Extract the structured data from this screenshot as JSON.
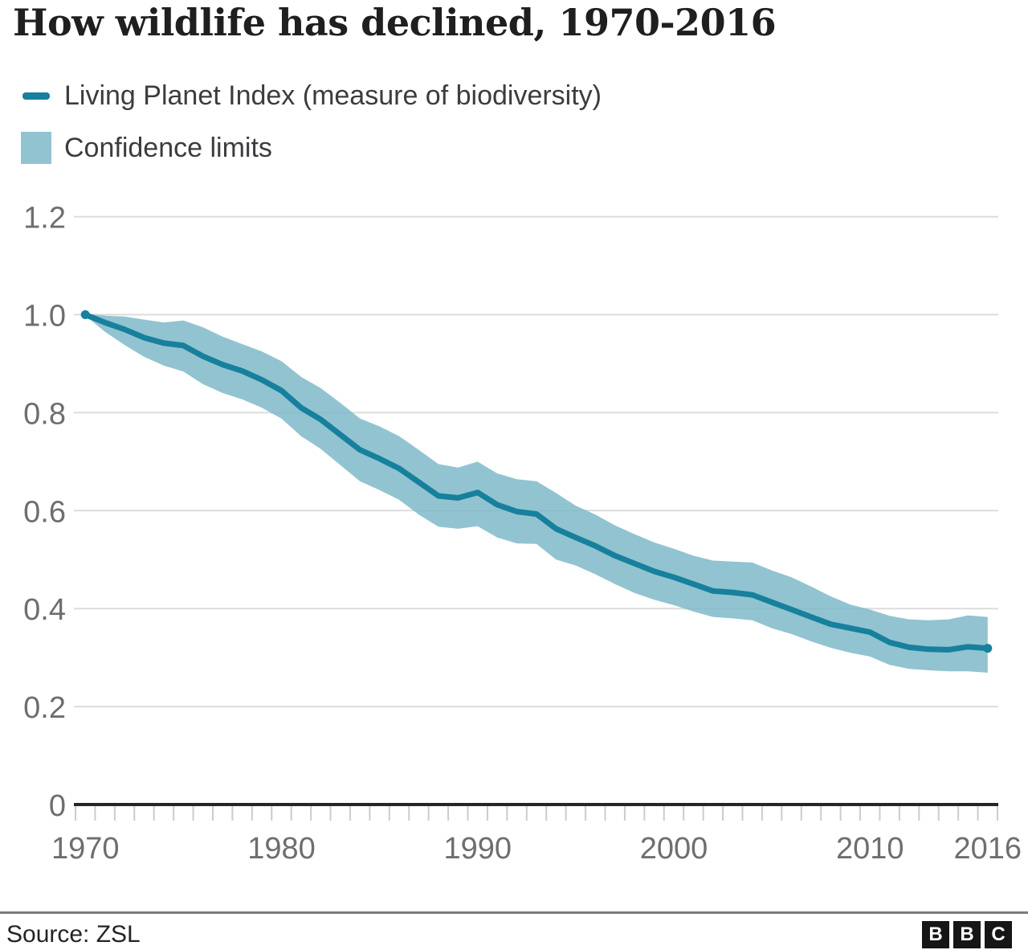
{
  "title": "How wildlife has declined, 1970-2016",
  "legend": {
    "items": [
      {
        "label": "Living Planet Index (measure of biodiversity)",
        "swatch": "line",
        "color": "#17809d"
      },
      {
        "label": "Confidence limits",
        "swatch": "box",
        "color": "#92c3d1"
      }
    ]
  },
  "footer": {
    "source": "Source: ZSL",
    "logo_letters": [
      "B",
      "B",
      "C"
    ]
  },
  "colors": {
    "line": "#17809d",
    "band": "#7fb9c9",
    "band_opacity": 0.85,
    "grid": "#dcdcdc",
    "axis": "#262626",
    "tick": "#cccccc",
    "axis_label": "#6e6e71"
  },
  "chart_data": {
    "type": "line",
    "title": "How wildlife has declined, 1970-2016",
    "xlabel": "",
    "ylabel": "",
    "grid": "horizontal",
    "legend_position": "top-left",
    "xlim": [
      1969.5,
      2016.5
    ],
    "ylim": [
      0,
      1.2
    ],
    "x": [
      1970,
      1971,
      1972,
      1973,
      1974,
      1975,
      1976,
      1977,
      1978,
      1979,
      1980,
      1981,
      1982,
      1983,
      1984,
      1985,
      1986,
      1987,
      1988,
      1989,
      1990,
      1991,
      1992,
      1993,
      1994,
      1995,
      1996,
      1997,
      1998,
      1999,
      2000,
      2001,
      2002,
      2003,
      2004,
      2005,
      2006,
      2007,
      2008,
      2009,
      2010,
      2011,
      2012,
      2013,
      2014,
      2015,
      2016
    ],
    "series": [
      {
        "name": "Living Planet Index (measure of biodiversity)",
        "values": [
          1.0,
          0.984,
          0.97,
          0.953,
          0.942,
          0.937,
          0.915,
          0.898,
          0.885,
          0.867,
          0.845,
          0.81,
          0.786,
          0.755,
          0.724,
          0.706,
          0.686,
          0.658,
          0.63,
          0.626,
          0.637,
          0.612,
          0.598,
          0.593,
          0.563,
          0.545,
          0.528,
          0.508,
          0.492,
          0.476,
          0.464,
          0.45,
          0.436,
          0.433,
          0.428,
          0.413,
          0.398,
          0.383,
          0.368,
          0.36,
          0.352,
          0.331,
          0.321,
          0.317,
          0.316,
          0.322,
          0.319
        ]
      },
      {
        "name": "Confidence limit upper",
        "values": [
          1.002,
          0.998,
          0.996,
          0.99,
          0.984,
          0.988,
          0.974,
          0.955,
          0.94,
          0.925,
          0.905,
          0.873,
          0.85,
          0.82,
          0.788,
          0.772,
          0.752,
          0.724,
          0.695,
          0.688,
          0.7,
          0.676,
          0.664,
          0.66,
          0.636,
          0.61,
          0.592,
          0.57,
          0.552,
          0.535,
          0.522,
          0.508,
          0.498,
          0.496,
          0.494,
          0.478,
          0.464,
          0.445,
          0.425,
          0.408,
          0.398,
          0.385,
          0.378,
          0.376,
          0.378,
          0.386,
          0.383
        ]
      },
      {
        "name": "Confidence limit lower",
        "values": [
          0.998,
          0.965,
          0.938,
          0.914,
          0.896,
          0.884,
          0.858,
          0.84,
          0.827,
          0.81,
          0.788,
          0.752,
          0.726,
          0.693,
          0.66,
          0.642,
          0.622,
          0.592,
          0.567,
          0.563,
          0.568,
          0.545,
          0.533,
          0.532,
          0.5,
          0.488,
          0.47,
          0.45,
          0.432,
          0.418,
          0.407,
          0.394,
          0.383,
          0.38,
          0.376,
          0.36,
          0.348,
          0.333,
          0.32,
          0.31,
          0.302,
          0.285,
          0.277,
          0.274,
          0.272,
          0.272,
          0.269
        ]
      }
    ],
    "xticks": [
      {
        "value": 1970,
        "label": "1970"
      },
      {
        "value": 1980,
        "label": "1980"
      },
      {
        "value": 1990,
        "label": "1990"
      },
      {
        "value": 2000,
        "label": "2000"
      },
      {
        "value": 2010,
        "label": "2010"
      },
      {
        "value": 2016,
        "label": "2016"
      }
    ],
    "yticks": [
      {
        "value": 0,
        "label": "0"
      },
      {
        "value": 0.2,
        "label": "0.2"
      },
      {
        "value": 0.4,
        "label": "0.4"
      },
      {
        "value": 0.6,
        "label": "0.6"
      },
      {
        "value": 0.8,
        "label": "0.8"
      },
      {
        "value": 1.0,
        "label": "1.0"
      },
      {
        "value": 1.2,
        "label": "1.2"
      }
    ]
  }
}
